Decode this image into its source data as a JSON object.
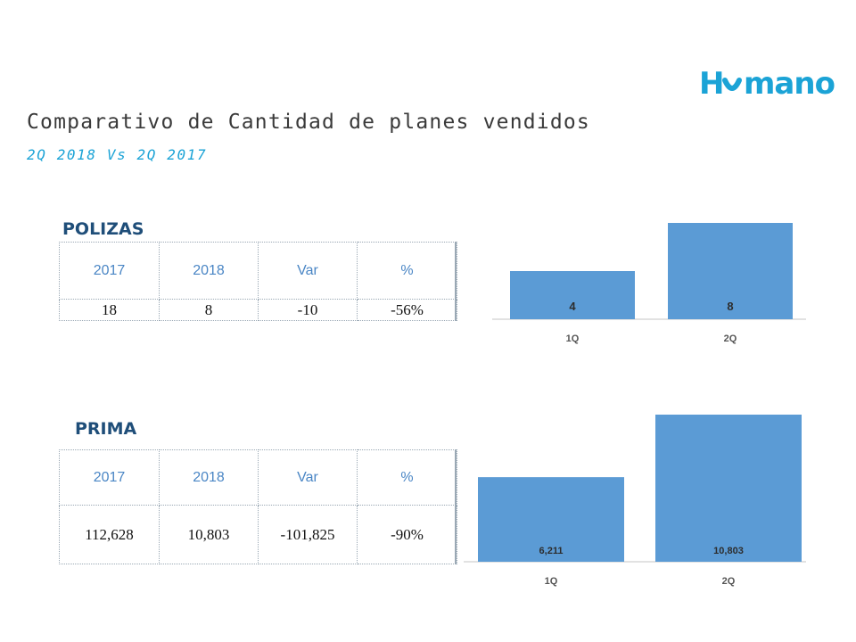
{
  "header": {
    "logo_text": "Humano",
    "title": "Comparativo de Cantidad de planes vendidos",
    "subtitle": "2Q 2018 Vs 2Q 2017"
  },
  "polizas": {
    "label": "POLIZAS",
    "table": {
      "headers": [
        "2017",
        "2018",
        "Var",
        "%"
      ],
      "values": [
        "18",
        "8",
        "-10",
        "-56%"
      ]
    }
  },
  "prima": {
    "label": "PRIMA",
    "table": {
      "headers": [
        "2017",
        "2018",
        "Var",
        "%"
      ],
      "values": [
        "112,628",
        "10,803",
        "-101,825",
        "-90%"
      ]
    }
  },
  "chart_data": [
    {
      "type": "bar",
      "categories": [
        "1Q",
        "2Q"
      ],
      "values": [
        4,
        8
      ],
      "value_labels": [
        "4",
        "8"
      ],
      "bar_color": "#5b9bd5",
      "ylim": [
        0,
        8
      ],
      "grid": false
    },
    {
      "type": "bar",
      "categories": [
        "1Q",
        "2Q"
      ],
      "values": [
        6211,
        10803
      ],
      "value_labels": [
        "6,211",
        "10,803"
      ],
      "bar_color": "#5b9bd5",
      "ylim": [
        0,
        10803
      ],
      "grid": false
    }
  ],
  "colors": {
    "brand": "#1ba3d6",
    "label_dark": "#1f4e79",
    "bar": "#5b9bd5"
  }
}
